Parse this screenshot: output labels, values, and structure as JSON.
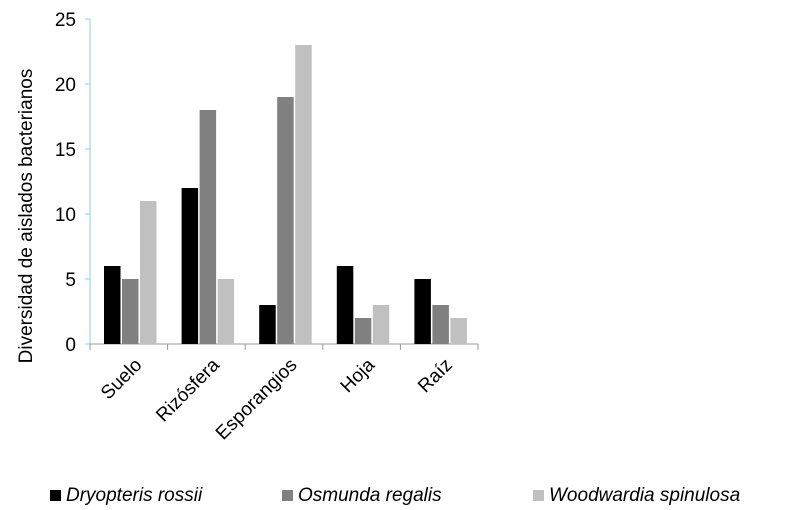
{
  "chart_data": {
    "type": "bar",
    "ylabel": "Diversidad de aislados bacterianos",
    "xlabel": "",
    "categories": [
      "Suelo",
      "Rizósfera",
      "Esporangios",
      "Hoja",
      "Raíz"
    ],
    "ylim": [
      0,
      25
    ],
    "yticks": [
      0,
      5,
      10,
      15,
      20,
      25
    ],
    "grid": false,
    "legend_position": "bottom",
    "series": [
      {
        "name": "Dryopteris rossii",
        "color": "#000000",
        "values": [
          6,
          12,
          3,
          6,
          5
        ]
      },
      {
        "name": "Osmunda regalis",
        "color": "#808080",
        "values": [
          5,
          18,
          19,
          2,
          3
        ]
      },
      {
        "name": "Woodwardia spinulosa",
        "color": "#c0c0c0",
        "values": [
          11,
          5,
          23,
          3,
          2
        ]
      }
    ]
  }
}
